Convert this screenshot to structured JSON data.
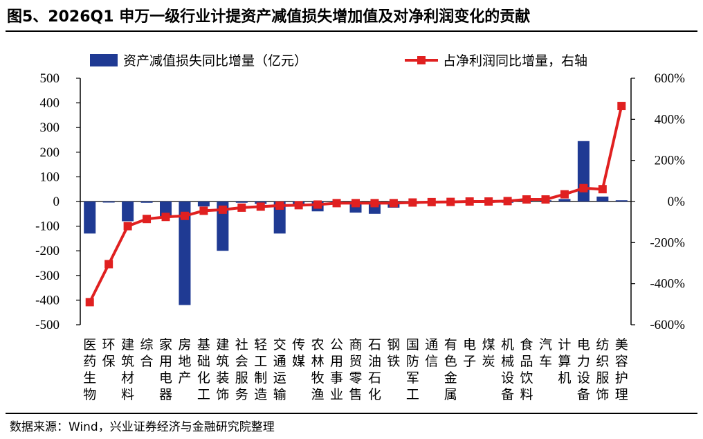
{
  "title": "图5、2026Q1 申万一级行业计提资产减值损失增加值及对净利润变化的贡献",
  "source": "数据来源：Wind，兴业证券经济与金融研究院整理",
  "chart_data": {
    "type": "bar+line",
    "legend_position": "top",
    "legend": [
      {
        "name": "资产减值损失同比增量（亿元）",
        "kind": "bar",
        "color": "#1f3a93"
      },
      {
        "name": "占净利润同比增量，右轴",
        "kind": "line",
        "color": "#e02020"
      }
    ],
    "categories": [
      [
        "医",
        "药",
        "生",
        "物"
      ],
      [
        "环",
        "保"
      ],
      [
        "建",
        "筑",
        "材",
        "料"
      ],
      [
        "综",
        "合"
      ],
      [
        "家",
        "用",
        "电",
        "器"
      ],
      [
        "房",
        "地",
        "产"
      ],
      [
        "基",
        "础",
        "化",
        "工"
      ],
      [
        "建",
        "筑",
        "装",
        "饰"
      ],
      [
        "社",
        "会",
        "服",
        "务"
      ],
      [
        "轻",
        "工",
        "制",
        "造"
      ],
      [
        "交",
        "通",
        "运",
        "输"
      ],
      [
        "传",
        "媒"
      ],
      [
        "农",
        "林",
        "牧",
        "渔"
      ],
      [
        "公",
        "用",
        "事",
        "业"
      ],
      [
        "商",
        "贸",
        "零",
        "售"
      ],
      [
        "石",
        "油",
        "石",
        "化"
      ],
      [
        "钢",
        "铁"
      ],
      [
        "国",
        "防",
        "军",
        "工"
      ],
      [
        "通",
        "信"
      ],
      [
        "有",
        "色",
        "金",
        "属"
      ],
      [
        "电",
        "子"
      ],
      [
        "煤",
        "炭"
      ],
      [
        "机",
        "械",
        "设",
        "备"
      ],
      [
        "食",
        "品",
        "饮",
        "料"
      ],
      [
        "汽",
        "车"
      ],
      [
        "计",
        "算",
        "机"
      ],
      [
        "电",
        "力",
        "设",
        "备"
      ],
      [
        "纺",
        "织",
        "服",
        "饰"
      ],
      [
        "美",
        "容",
        "护",
        "理"
      ]
    ],
    "series": [
      {
        "name": "资产减值损失同比增量（亿元）",
        "type": "bar",
        "axis": "left",
        "color": "#1f3a93",
        "values": [
          -130,
          -2,
          -80,
          -5,
          -60,
          -420,
          -20,
          -200,
          -5,
          -10,
          -130,
          -10,
          -40,
          -5,
          -45,
          -50,
          -25,
          -10,
          -5,
          -5,
          -5,
          -5,
          -5,
          5,
          5,
          10,
          245,
          20,
          5
        ]
      },
      {
        "name": "占净利润同比增量，右轴",
        "type": "line",
        "axis": "right",
        "color": "#e02020",
        "values": [
          -490,
          -305,
          -120,
          -85,
          -75,
          -70,
          -45,
          -40,
          -30,
          -25,
          -20,
          -18,
          -15,
          -8,
          -8,
          -8,
          -8,
          -5,
          -3,
          -2,
          0,
          0,
          2,
          10,
          10,
          35,
          65,
          60,
          465
        ]
      }
    ],
    "y_left": {
      "min": -500,
      "max": 500,
      "ticks": [
        500,
        400,
        300,
        200,
        100,
        0,
        -100,
        -200,
        -300,
        -400,
        -500
      ]
    },
    "y_right": {
      "min": -600,
      "max": 600,
      "ticks": [
        "600%",
        "400%",
        "200%",
        "0%",
        "-200%",
        "-400%",
        "-600%"
      ],
      "tick_values": [
        600,
        400,
        200,
        0,
        -200,
        -400,
        -600
      ]
    }
  }
}
